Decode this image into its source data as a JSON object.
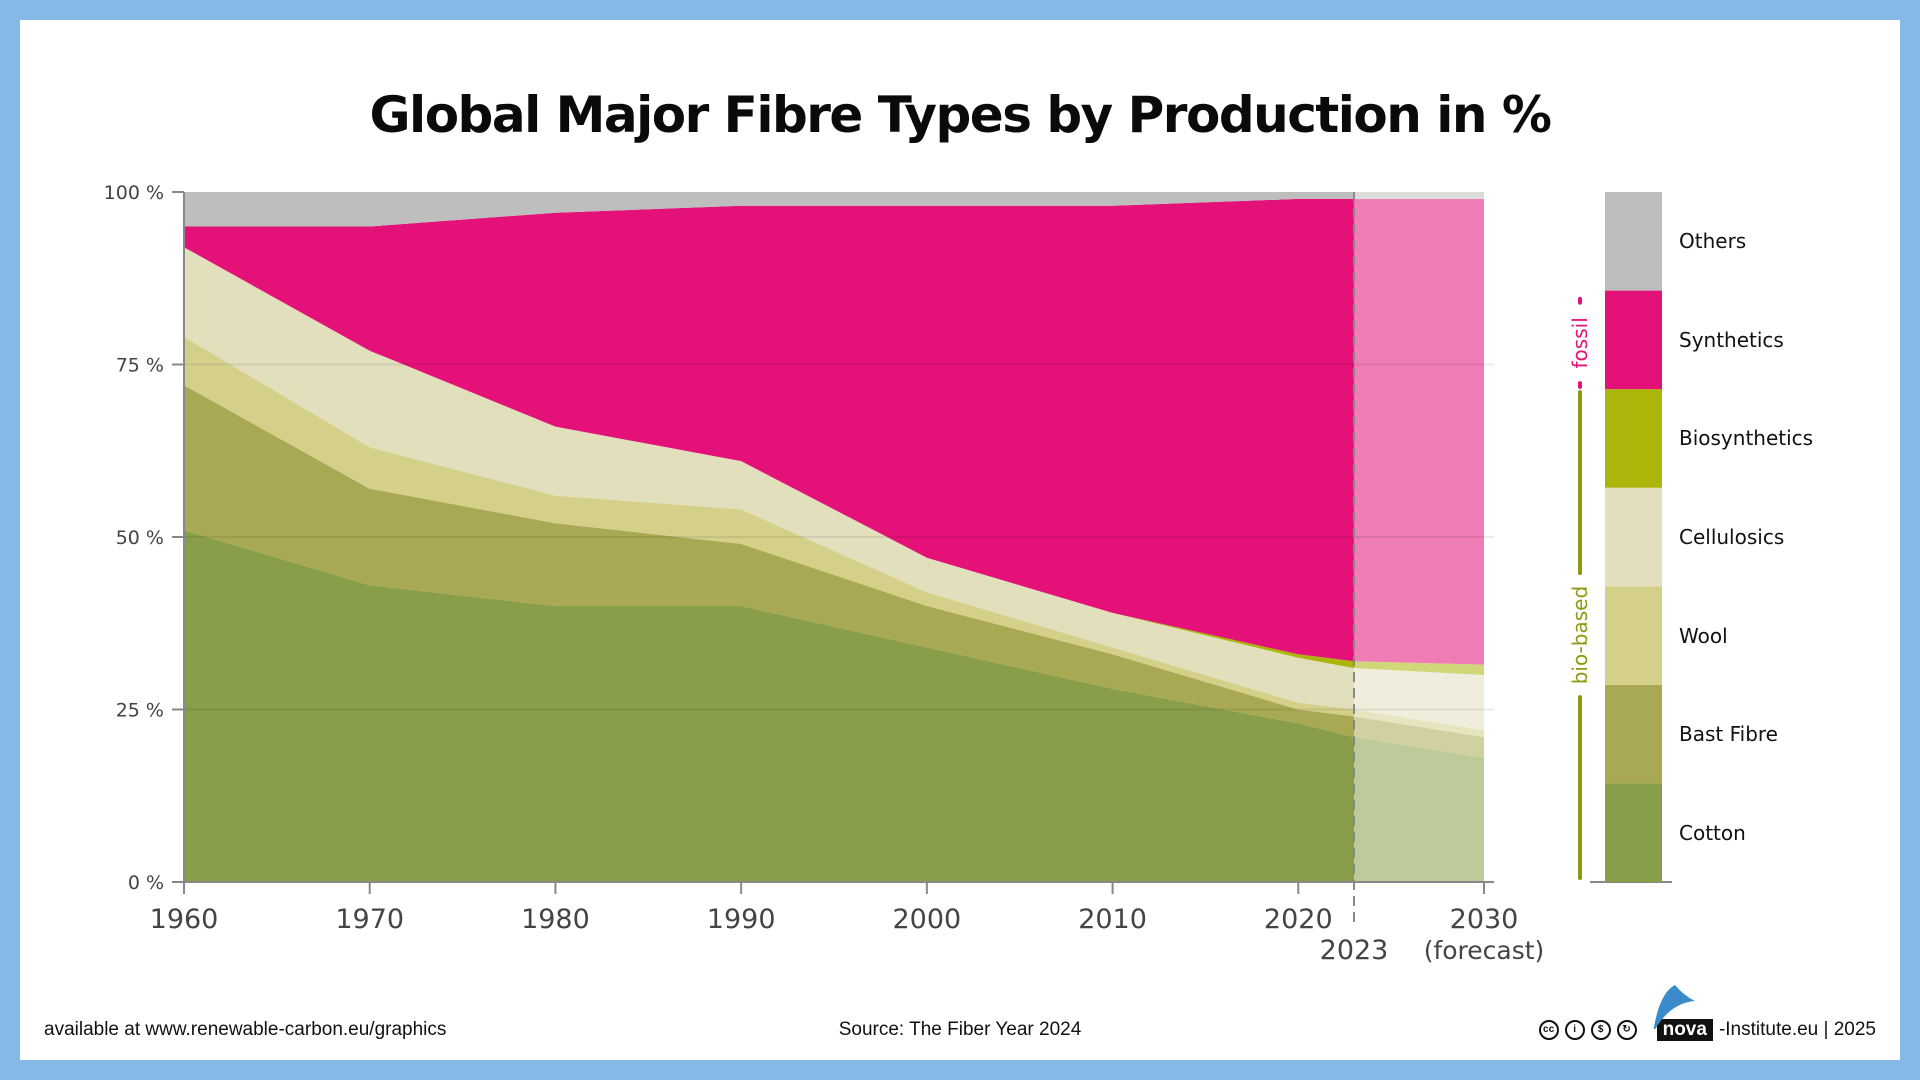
{
  "title": "Global Major Fibre Types by Production in %",
  "footer": {
    "available": "available at www.renewable-carbon.eu/graphics",
    "source": "Source: The Fiber Year 2024",
    "logo_text": "nova",
    "credit": "-Institute.eu | 2025",
    "license_icons": [
      "cc-icon",
      "by-icon",
      "nc-icon",
      "sa-icon"
    ]
  },
  "chart_data": {
    "type": "area",
    "stacked": true,
    "title": "Global Major Fibre Types by Production in %",
    "x": [
      1960,
      1970,
      1980,
      1990,
      2000,
      2010,
      2020,
      2023,
      2030
    ],
    "x_ticks": [
      "1960",
      "1970",
      "1980",
      "1990",
      "2000",
      "2010",
      "2020",
      "2030"
    ],
    "x_annotations": {
      "marker_year": "2023",
      "forecast_label": "(forecast)"
    },
    "forecast_from": 2023,
    "y_ticks": [
      "0 %",
      "25 %",
      "50 %",
      "75 %",
      "100 %"
    ],
    "ylim": [
      0,
      100
    ],
    "grid": true,
    "legend_position": "right",
    "series": [
      {
        "name": "Cotton",
        "color": "#889e48",
        "values": [
          51,
          43,
          40,
          40,
          34,
          28,
          23,
          21,
          18
        ]
      },
      {
        "name": "Bast Fibre",
        "color": "#aaa953",
        "values": [
          21,
          14,
          12,
          9,
          6,
          5,
          2,
          3,
          3
        ]
      },
      {
        "name": "Wool",
        "color": "#d4d08a",
        "values": [
          7,
          6,
          4,
          5,
          2,
          1,
          1,
          1,
          1
        ]
      },
      {
        "name": "Cellulosics",
        "color": "#e2dfbd",
        "values": [
          13,
          14,
          10,
          7,
          5,
          5,
          6.5,
          6,
          8
        ]
      },
      {
        "name": "Biosynthetics",
        "color": "#abb50a",
        "values": [
          0,
          0,
          0,
          0,
          0,
          0,
          0.5,
          1,
          1.5
        ]
      },
      {
        "name": "Synthetics",
        "color": "#e41178",
        "values": [
          3,
          18,
          31,
          37,
          51,
          59,
          66,
          67,
          67.5
        ]
      },
      {
        "name": "Others",
        "color": "#bebebe",
        "values": [
          5,
          5,
          3,
          2,
          2,
          2,
          1,
          1,
          1
        ]
      }
    ],
    "groups": [
      {
        "label": "fossil",
        "color": "#e41178",
        "members": [
          "Synthetics"
        ]
      },
      {
        "label": "bio-based",
        "color": "#8c9a0e",
        "members": [
          "Biosynthetics",
          "Cellulosics",
          "Wool",
          "Bast Fibre",
          "Cotton"
        ]
      }
    ]
  }
}
